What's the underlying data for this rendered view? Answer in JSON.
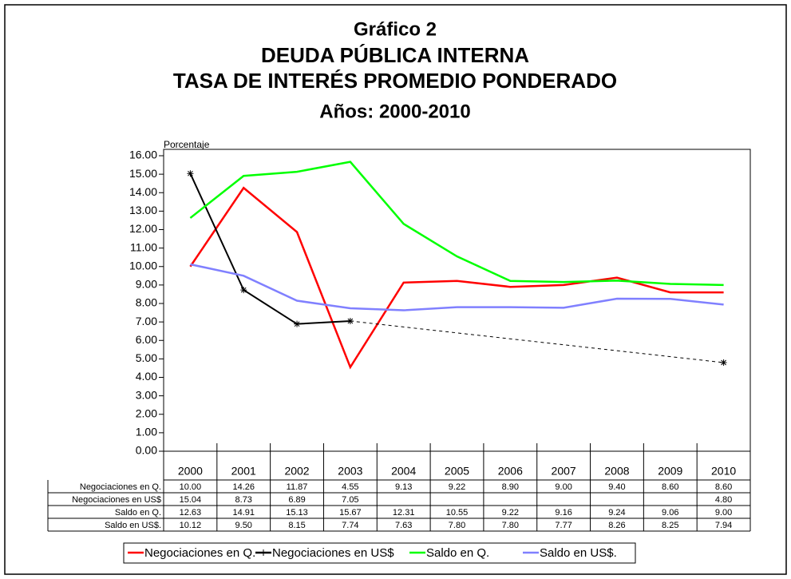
{
  "chart_data": {
    "type": "line",
    "title": "Gráfico 2",
    "subtitle": [
      "DEUDA PÚBLICA INTERNA",
      "TASA DE INTERÉS PROMEDIO PONDERADO",
      "Años: 2000-2010"
    ],
    "y_label": "Porcentaje",
    "categories": [
      "2000",
      "2001",
      "2002",
      "2003",
      "2004",
      "2005",
      "2006",
      "2007",
      "2008",
      "2009",
      "2010"
    ],
    "series": [
      {
        "name": "Negociaciones en Q.",
        "color": "#ff0000",
        "values": [
          10.0,
          14.26,
          11.87,
          4.55,
          9.13,
          9.22,
          8.9,
          9.0,
          9.4,
          8.6,
          8.6
        ],
        "value_labels": [
          "10.00",
          "14.26",
          "11.87",
          "4.55",
          "9.13",
          "9.22",
          "8.90",
          "9.00",
          "9.40",
          "8.60",
          "8.60"
        ]
      },
      {
        "name": "Negociaciones en US$",
        "color": "#000000",
        "marker": "cross",
        "values": [
          15.04,
          8.73,
          6.89,
          7.05,
          null,
          null,
          null,
          null,
          null,
          null,
          4.8
        ],
        "value_labels": [
          "15.04",
          "8.73",
          "6.89",
          "7.05",
          null,
          null,
          null,
          null,
          null,
          null,
          "4.80"
        ]
      },
      {
        "name": "Saldo en Q.",
        "color": "#00ff00",
        "values": [
          12.63,
          14.91,
          15.13,
          15.67,
          12.31,
          10.55,
          9.22,
          9.16,
          9.24,
          9.06,
          9.0
        ],
        "value_labels": [
          "12.63",
          "14.91",
          "15.13",
          "15.67",
          "12.31",
          "10.55",
          "9.22",
          "9.16",
          "9.24",
          "9.06",
          "9.00"
        ]
      },
      {
        "name": "Saldo en US$.",
        "color": "#8080ff",
        "values": [
          10.12,
          9.5,
          8.15,
          7.74,
          7.63,
          7.8,
          7.8,
          7.77,
          8.26,
          8.25,
          7.94
        ],
        "value_labels": [
          "10.12",
          "9.50",
          "8.15",
          "7.74",
          "7.63",
          "7.80",
          "7.80",
          "7.77",
          "8.26",
          "8.25",
          "7.94"
        ]
      }
    ],
    "ylim": [
      0,
      16
    ],
    "yticks": [
      {
        "value": 0,
        "label": "0.00"
      },
      {
        "value": 1,
        "label": "1.00"
      },
      {
        "value": 2,
        "label": "2.00"
      },
      {
        "value": 3,
        "label": "3.00"
      },
      {
        "value": 4,
        "label": "4.00"
      },
      {
        "value": 5,
        "label": "5.00"
      },
      {
        "value": 6,
        "label": "6.00"
      },
      {
        "value": 7,
        "label": "7.00"
      },
      {
        "value": 8,
        "label": "8.00"
      },
      {
        "value": 9,
        "label": "9.00"
      },
      {
        "value": 10,
        "label": "10.00"
      },
      {
        "value": 11,
        "label": "11.00"
      },
      {
        "value": 12,
        "label": "12.00"
      },
      {
        "value": 13,
        "label": "13.00"
      },
      {
        "value": 14,
        "label": "14.00"
      },
      {
        "value": 15,
        "label": "15.00"
      },
      {
        "value": 16,
        "label": "16.00"
      }
    ],
    "grid": false,
    "legend": "bottom",
    "data_table": true
  }
}
